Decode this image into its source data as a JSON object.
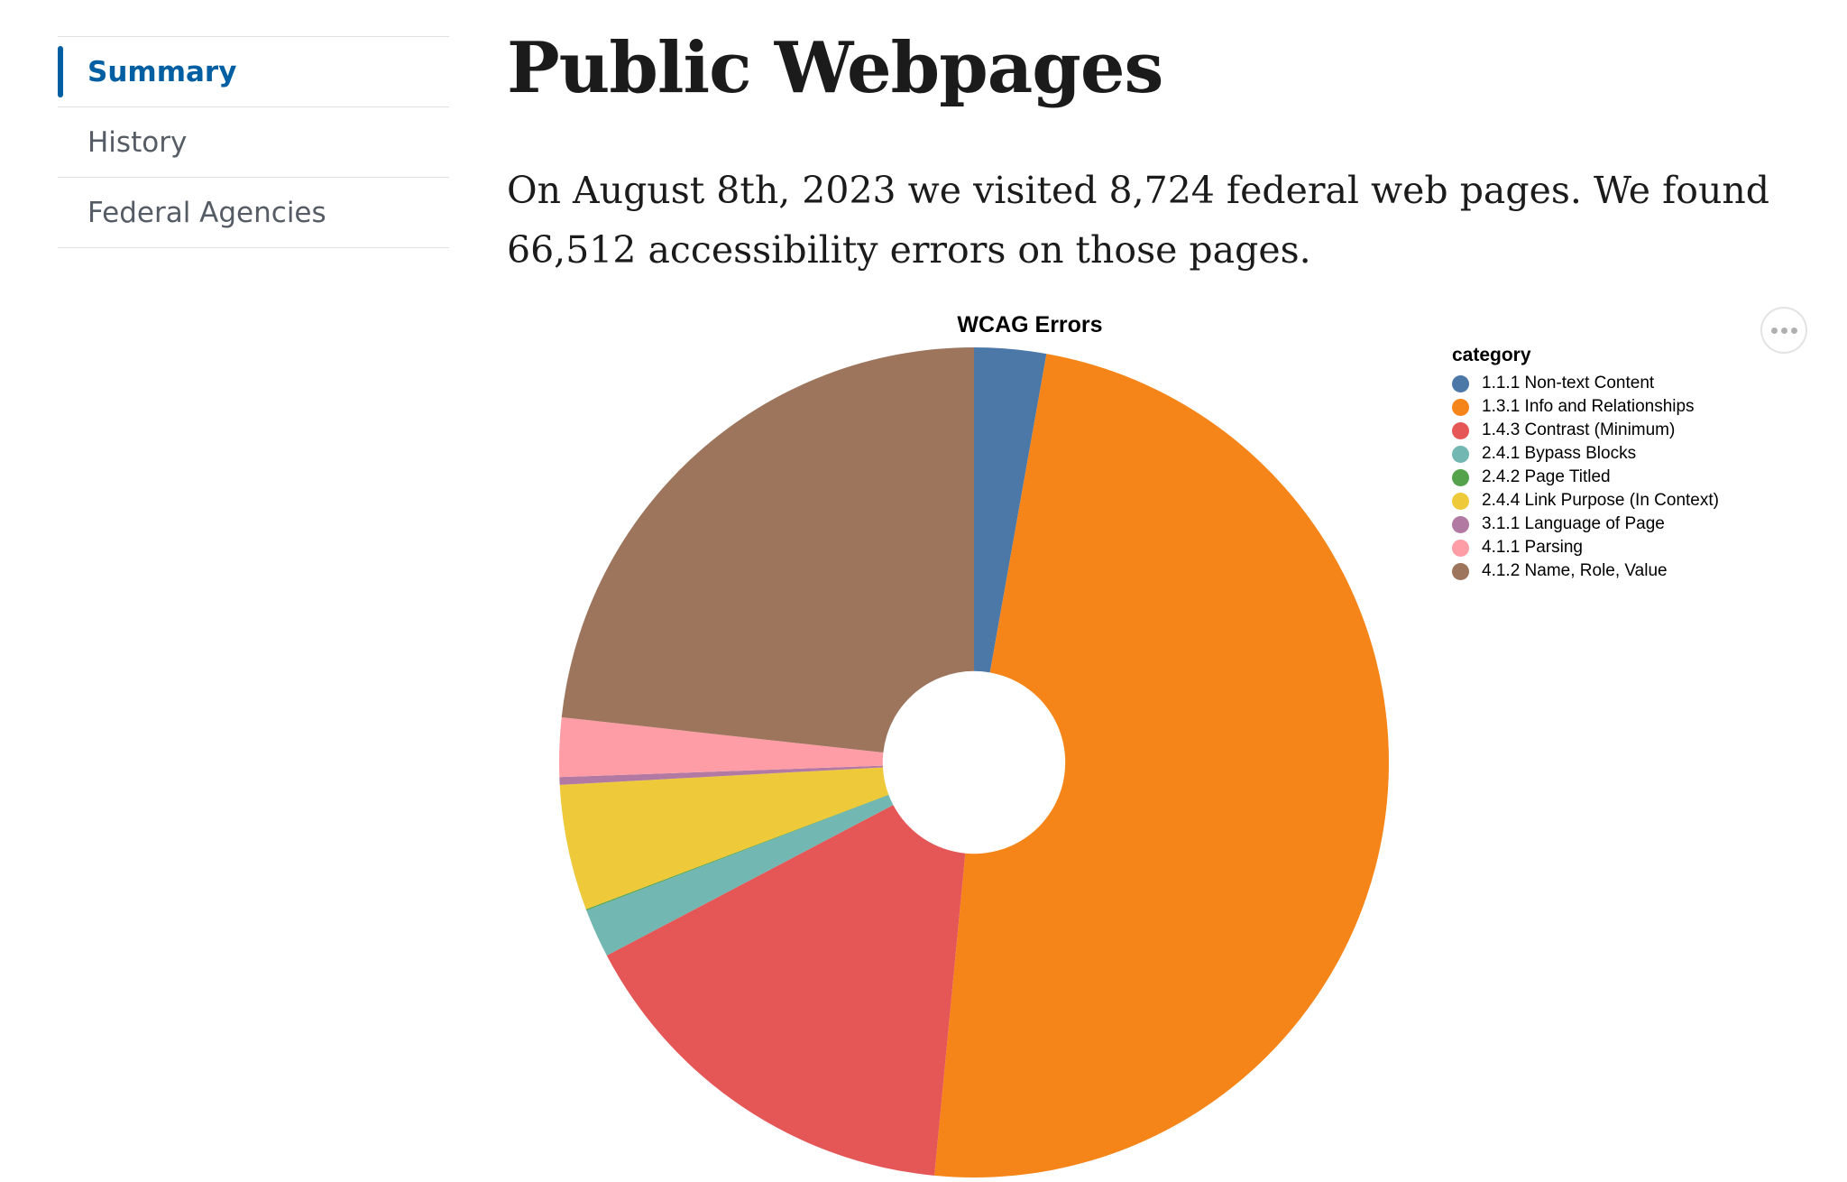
{
  "sidenav": {
    "items": [
      {
        "label": "Summary",
        "current": true
      },
      {
        "label": "History",
        "current": false
      },
      {
        "label": "Federal Agencies",
        "current": false
      }
    ]
  },
  "page": {
    "title": "Public Webpages",
    "lead": "On August 8th, 2023 we visited 8,724 federal web pages. We found 66,512 accessibility errors on those pages."
  },
  "chart_actions": {
    "icon": "ellipsis-icon"
  },
  "chart_data": {
    "type": "pie",
    "title": "WCAG Errors",
    "legend_title": "category",
    "legend_placement": "top-right",
    "categories": [
      "1.1.1 Non-text Content",
      "1.3.1 Info and Relationships",
      "1.4.3 Contrast (Minimum)",
      "2.4.1 Bypass Blocks",
      "2.4.2 Page Titled",
      "2.4.4 Link Purpose (In Context)",
      "3.1.1 Language of Page",
      "4.1.1 Parsing",
      "4.1.2 Name, Role, Value"
    ],
    "values": [
      2.8,
      48.8,
      15.8,
      1.9,
      0.05,
      4.9,
      0.3,
      2.3,
      23.3
    ],
    "value_unit": "percent of errors (estimated)",
    "colors": [
      "#4c78a8",
      "#f58518",
      "#e45756",
      "#72b7b2",
      "#54a24b",
      "#eeca3b",
      "#b279a2",
      "#ff9da6",
      "#9d755d"
    ],
    "inner_radius_ratio": 0.22
  }
}
